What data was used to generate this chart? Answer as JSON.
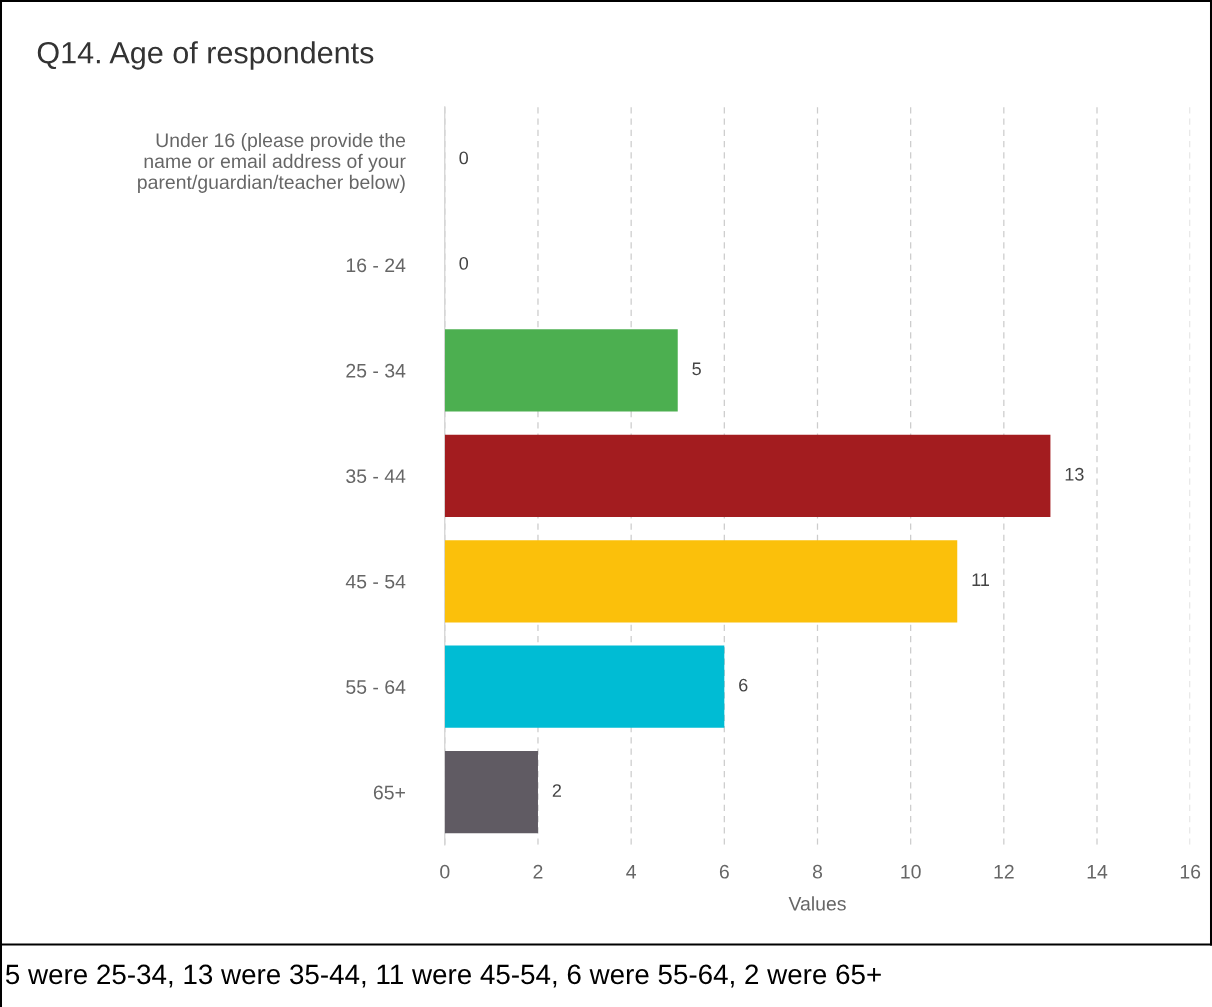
{
  "chart_data": {
    "type": "bar",
    "orientation": "horizontal",
    "title": "Q14. Age of respondents",
    "xlabel": "Values",
    "categories": [
      "Under 16 (please provide the\nname or email address of your\nparent/guardian/teacher below)",
      "16 - 24",
      "25 - 34",
      "35 - 44",
      "45 - 54",
      "55 - 64",
      "65+"
    ],
    "values": [
      0,
      0,
      5,
      13,
      11,
      6,
      2
    ],
    "colors": [
      "#4472c4",
      "#ed7d31",
      "#4caf50",
      "#a31c1f",
      "#fbc00b",
      "#00bcd4",
      "#605b63"
    ],
    "xlim": [
      0,
      16
    ],
    "xticks": [
      0,
      2,
      4,
      6,
      8,
      10,
      12,
      14,
      16
    ],
    "grid": "x",
    "data_labels": true,
    "legend": false,
    "annotations": [
      "5 were 25-34, 13 were 35-44, 11 were 45-54, 6 were 55-64, 2 were 65+"
    ]
  }
}
